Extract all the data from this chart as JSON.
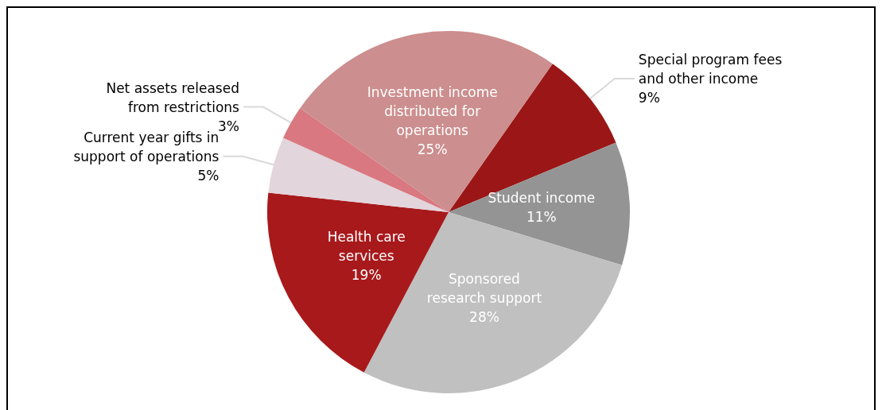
{
  "chart_data": {
    "type": "pie",
    "categories": [
      "Special program fees\nand other income",
      "Student income",
      "Sponsored\nresearch support",
      "Health care\nservices",
      "Current year gifts in\nsupport of operations",
      "Net assets released\nfrom restrictions",
      "Investment income\ndistributed for\noperations"
    ],
    "values": [
      9,
      11,
      28,
      19,
      5,
      3,
      25
    ],
    "value_labels": [
      "9%",
      "11%",
      "28%",
      "19%",
      "5%",
      "3%",
      "25%"
    ],
    "colors": [
      "#9b1616",
      "#949494",
      "#c0c0c0",
      "#a8191b",
      "#e2d5dc",
      "#d97880",
      "#cc8e8e"
    ],
    "legend": false
  }
}
